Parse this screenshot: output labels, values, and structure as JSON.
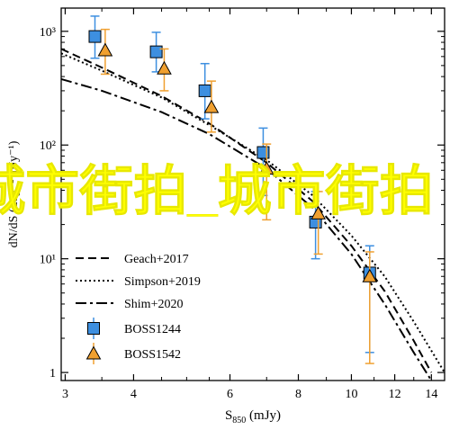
{
  "chart_data": {
    "type": "scatter",
    "xlabel": "S",
    "xlabel_sub": "850",
    "xlabel_unit": " (mJy)",
    "ylabel": "dN/dS (deg⁻² mJy⁻¹)",
    "x_scale": "log",
    "y_scale": "log",
    "xlim": [
      2.95,
      14.8
    ],
    "ylim": [
      0.85,
      1600
    ],
    "x_ticks": [
      3,
      4,
      6,
      8,
      10,
      12,
      14
    ],
    "x_tick_labels": [
      "3",
      "4",
      "6",
      "8",
      "10",
      "12",
      "14"
    ],
    "y_ticks": [
      1,
      10,
      100,
      1000
    ],
    "y_tick_labels": [
      "1",
      "10¹",
      "10²",
      "10³"
    ],
    "grid": false,
    "legend_placement": "bottom-left",
    "model_lines": [
      {
        "name": "Geach+2017",
        "style": "dashed",
        "color": "#000000",
        "x": [
          2.95,
          3.5,
          4.5,
          5.5,
          7,
          8.5,
          10,
          11.5,
          13,
          14
        ],
        "y": [
          700,
          480,
          270,
          155,
          70,
          32,
          13,
          5.2,
          1.9,
          1.0
        ]
      },
      {
        "name": "Simpson+2019",
        "style": "dotted",
        "color": "#000000",
        "x": [
          2.95,
          3.5,
          4.5,
          5.5,
          7,
          8.5,
          10,
          11.5,
          13,
          14.8
        ],
        "y": [
          640,
          450,
          262,
          150,
          74,
          36,
          16,
          7.0,
          2.8,
          1.0
        ]
      },
      {
        "name": "Shim+2020",
        "style": "dashdot",
        "color": "#000000",
        "x": [
          2.95,
          3.5,
          4.5,
          5.5,
          7,
          8.5,
          10,
          11.5,
          13,
          14
        ],
        "y": [
          380,
          300,
          195,
          125,
          62,
          28,
          11,
          4.0,
          1.5,
          0.85
        ]
      }
    ],
    "series": [
      {
        "name": "BOSS1244",
        "marker": "square",
        "color": "#3d8fe0",
        "x": [
          3.4,
          4.4,
          5.4,
          6.9,
          8.6,
          10.8
        ],
        "y": [
          900,
          660,
          300,
          86,
          21,
          7.5
        ],
        "y_err_low": [
          320,
          220,
          130,
          50,
          11,
          6.0
        ],
        "y_err_high": [
          460,
          320,
          220,
          55,
          18,
          5.5
        ]
      },
      {
        "name": "BOSS1542",
        "marker": "triangle",
        "color": "#f0a030",
        "x": [
          3.55,
          4.55,
          5.55,
          7.0,
          8.7,
          10.8
        ],
        "y": [
          680,
          470,
          215,
          62,
          25,
          7.0
        ],
        "y_err_low": [
          260,
          170,
          85,
          40,
          14,
          5.8
        ],
        "y_err_high": [
          360,
          230,
          150,
          40,
          14,
          4.5
        ]
      }
    ]
  },
  "watermark": "城市街拍_城市街拍"
}
